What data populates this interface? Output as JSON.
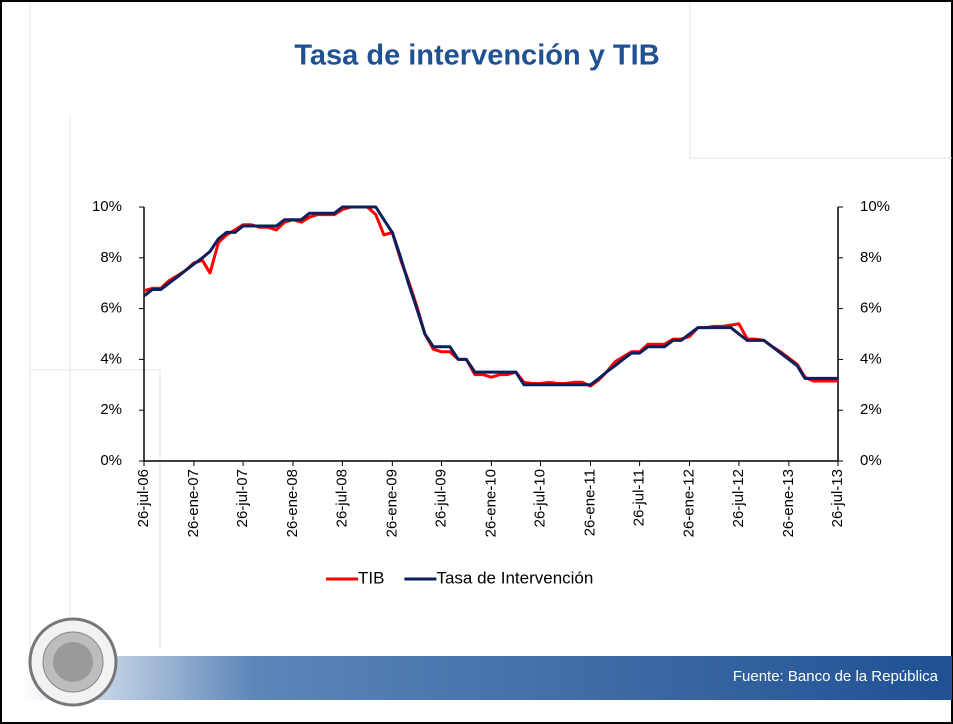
{
  "chart_data": {
    "type": "line",
    "title": "Tasa de intervención y TIB",
    "x": [
      "2006-07-26",
      "2006-08-26",
      "2006-09-26",
      "2006-10-26",
      "2006-11-26",
      "2006-12-26",
      "2007-01-26",
      "2007-02-26",
      "2007-03-26",
      "2007-04-26",
      "2007-05-26",
      "2007-06-26",
      "2007-07-26",
      "2007-08-26",
      "2007-09-26",
      "2007-10-26",
      "2007-11-26",
      "2007-12-26",
      "2008-01-26",
      "2008-02-26",
      "2008-03-26",
      "2008-04-26",
      "2008-05-26",
      "2008-06-26",
      "2008-07-26",
      "2008-08-26",
      "2008-09-26",
      "2008-10-26",
      "2008-11-26",
      "2008-12-26",
      "2009-01-26",
      "2009-02-26",
      "2009-03-26",
      "2009-04-26",
      "2009-05-26",
      "2009-06-26",
      "2009-07-26",
      "2009-08-26",
      "2009-09-26",
      "2009-10-26",
      "2009-11-26",
      "2009-12-26",
      "2010-01-26",
      "2010-02-26",
      "2010-03-26",
      "2010-04-26",
      "2010-05-26",
      "2010-06-26",
      "2010-07-26",
      "2010-08-26",
      "2010-09-26",
      "2010-10-26",
      "2010-11-26",
      "2010-12-26",
      "2011-01-26",
      "2011-02-26",
      "2011-03-26",
      "2011-04-26",
      "2011-05-26",
      "2011-06-26",
      "2011-07-26",
      "2011-08-26",
      "2011-09-26",
      "2011-10-26",
      "2011-11-26",
      "2011-12-26",
      "2012-01-26",
      "2012-02-26",
      "2012-03-26",
      "2012-04-26",
      "2012-05-26",
      "2012-06-26",
      "2012-07-26",
      "2012-08-26",
      "2012-09-26",
      "2012-10-26",
      "2012-11-26",
      "2012-12-26",
      "2013-01-26",
      "2013-02-26",
      "2013-03-26",
      "2013-04-26",
      "2013-05-26",
      "2013-06-26",
      "2013-07-26"
    ],
    "series": [
      {
        "name": "TIB",
        "color": "#ff0000",
        "values": [
          6.7,
          6.8,
          6.8,
          7.1,
          7.3,
          7.5,
          7.8,
          7.9,
          7.4,
          8.6,
          8.9,
          9.1,
          9.3,
          9.3,
          9.2,
          9.2,
          9.1,
          9.4,
          9.5,
          9.4,
          9.6,
          9.7,
          9.7,
          9.7,
          9.9,
          10,
          10,
          10,
          9.7,
          8.9,
          9.0,
          7.9,
          7.1,
          6.1,
          5.0,
          4.4,
          4.3,
          4.3,
          4.0,
          4.0,
          3.4,
          3.4,
          3.3,
          3.4,
          3.4,
          3.5,
          3.1,
          3.05,
          3.05,
          3.1,
          3.05,
          3.05,
          3.1,
          3.1,
          2.95,
          3.2,
          3.5,
          3.9,
          4.1,
          4.3,
          4.3,
          4.6,
          4.6,
          4.6,
          4.8,
          4.8,
          4.9,
          5.25,
          5.25,
          5.3,
          5.3,
          5.35,
          5.4,
          4.8,
          4.8,
          4.75,
          4.5,
          4.3,
          4.05,
          3.8,
          3.3,
          3.15,
          3.15,
          3.15,
          3.15
        ]
      },
      {
        "name": "Tasa de Intervención",
        "color": "#0a1f5c",
        "values": [
          6.5,
          6.75,
          6.75,
          7.0,
          7.25,
          7.5,
          7.75,
          8.0,
          8.25,
          8.75,
          9.0,
          9.0,
          9.25,
          9.25,
          9.25,
          9.25,
          9.25,
          9.5,
          9.5,
          9.5,
          9.75,
          9.75,
          9.75,
          9.75,
          10,
          10,
          10,
          10,
          10,
          9.5,
          9.0,
          8.0,
          7.0,
          6.0,
          5.0,
          4.5,
          4.5,
          4.5,
          4.0,
          4.0,
          3.5,
          3.5,
          3.5,
          3.5,
          3.5,
          3.5,
          3.0,
          3.0,
          3.0,
          3.0,
          3.0,
          3.0,
          3.0,
          3.0,
          3.0,
          3.25,
          3.5,
          3.75,
          4.0,
          4.25,
          4.25,
          4.5,
          4.5,
          4.5,
          4.75,
          4.75,
          5.0,
          5.25,
          5.25,
          5.25,
          5.25,
          5.25,
          5.0,
          4.75,
          4.75,
          4.75,
          4.5,
          4.25,
          4.0,
          3.75,
          3.25,
          3.25,
          3.25,
          3.25,
          3.25
        ]
      }
    ],
    "xlim": [
      "2006-07-26",
      "2013-07-26"
    ],
    "xticks": [
      {
        "value": "2006-07-26",
        "label": "26-jul-06"
      },
      {
        "value": "2007-01-26",
        "label": "26-ene-07"
      },
      {
        "value": "2007-07-26",
        "label": "26-jul-07"
      },
      {
        "value": "2008-01-26",
        "label": "26-ene-08"
      },
      {
        "value": "2008-07-26",
        "label": "26-jul-08"
      },
      {
        "value": "2009-01-26",
        "label": "26-ene-09"
      },
      {
        "value": "2009-07-26",
        "label": "26-jul-09"
      },
      {
        "value": "2010-01-26",
        "label": "26-ene-10"
      },
      {
        "value": "2010-07-26",
        "label": "26-jul-10"
      },
      {
        "value": "2011-01-26",
        "label": "26-ene-11"
      },
      {
        "value": "2011-07-26",
        "label": "26-jul-11"
      },
      {
        "value": "2012-01-26",
        "label": "26-ene-12"
      },
      {
        "value": "2012-07-26",
        "label": "26-jul-12"
      },
      {
        "value": "2013-01-26",
        "label": "26-ene-13"
      },
      {
        "value": "2013-07-26",
        "label": "26-jul-13"
      }
    ],
    "ylim": [
      0,
      10
    ],
    "yticks": [
      {
        "value": 0,
        "label": "0%"
      },
      {
        "value": 2,
        "label": "2%"
      },
      {
        "value": 4,
        "label": "4%"
      },
      {
        "value": 6,
        "label": "6%"
      },
      {
        "value": 8,
        "label": "8%"
      },
      {
        "value": 10,
        "label": "10%"
      }
    ],
    "y2lim": [
      0,
      10
    ],
    "y2ticks": [
      {
        "value": 0,
        "label": "0%"
      },
      {
        "value": 2,
        "label": "2%"
      },
      {
        "value": 4,
        "label": "4%"
      },
      {
        "value": 6,
        "label": "6%"
      },
      {
        "value": 8,
        "label": "8%"
      },
      {
        "value": 10,
        "label": "10%"
      }
    ],
    "legend": "bottom"
  },
  "footer": {
    "source": "Fuente: Banco de la República"
  }
}
